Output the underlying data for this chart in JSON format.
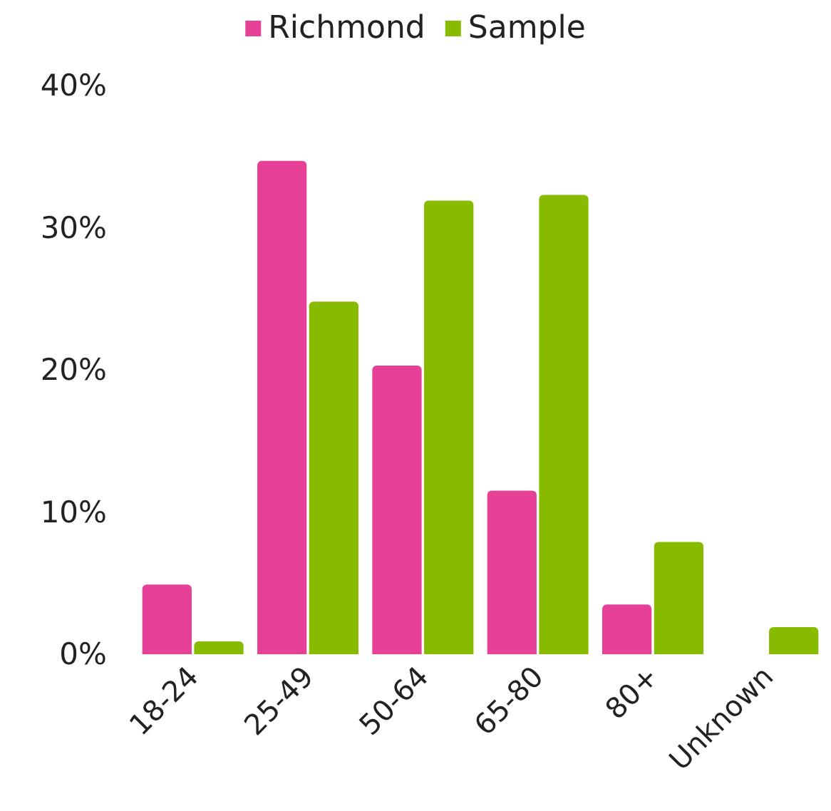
{
  "chart_data": {
    "type": "bar",
    "categories": [
      "18-24",
      "25-49",
      "50-64",
      "65-80",
      "80+",
      "Unknown"
    ],
    "series": [
      {
        "name": "Richmond",
        "color": "#e64097",
        "values": [
          4.9,
          34.7,
          20.3,
          11.5,
          3.5,
          null
        ]
      },
      {
        "name": "Sample",
        "color": "#86bb00",
        "values": [
          0.9,
          24.8,
          31.9,
          32.3,
          7.9,
          1.9
        ]
      }
    ],
    "ylim": [
      0,
      40
    ],
    "yticks": [
      {
        "value": 0,
        "label": "0%"
      },
      {
        "value": 10,
        "label": "10%"
      },
      {
        "value": 20,
        "label": "20%"
      },
      {
        "value": 30,
        "label": "30%"
      },
      {
        "value": 40,
        "label": "40%"
      }
    ],
    "grid": false,
    "legend": "top"
  }
}
